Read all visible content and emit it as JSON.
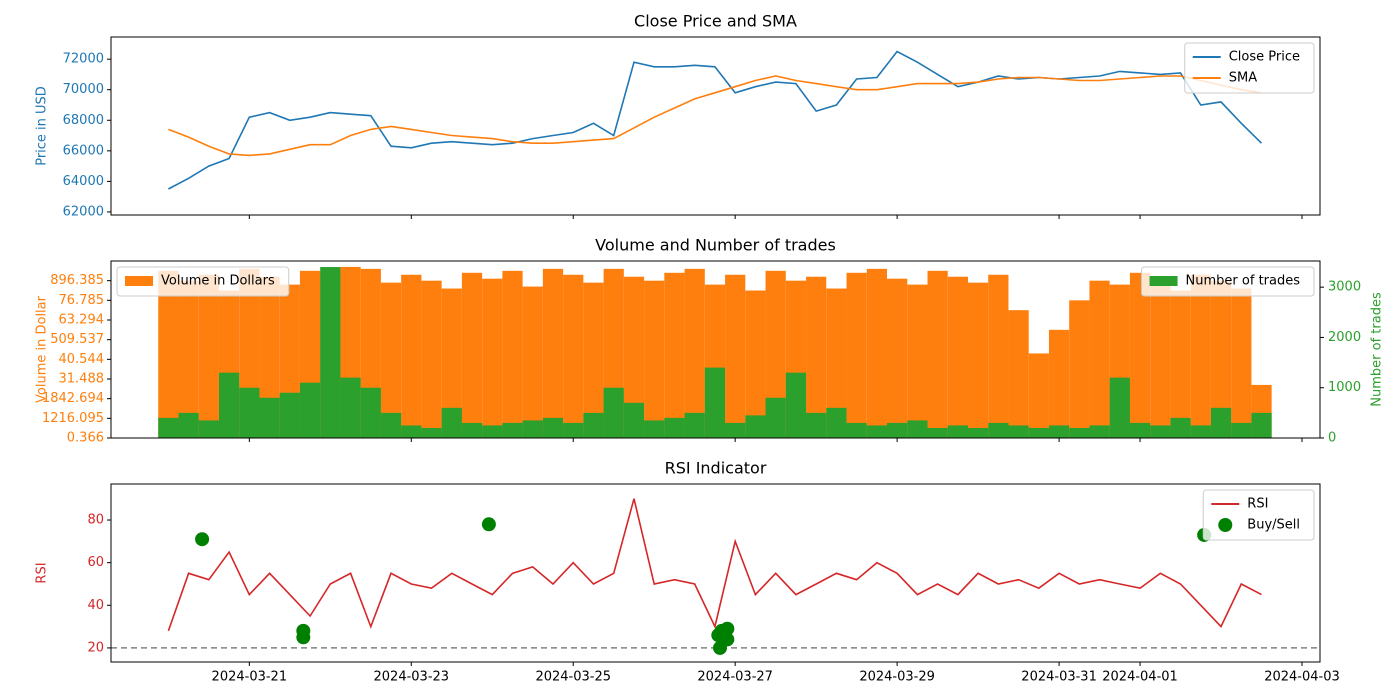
{
  "chart_data": [
    {
      "type": "line",
      "title": "Close Price and SMA",
      "ylabel": "Price in USD",
      "x": [
        "2024-03-20T00:00",
        "2024-03-20T06:00",
        "2024-03-20T12:00",
        "2024-03-20T18:00",
        "2024-03-21T00:00",
        "2024-03-21T06:00",
        "2024-03-21T12:00",
        "2024-03-21T18:00",
        "2024-03-22T00:00",
        "2024-03-22T06:00",
        "2024-03-22T12:00",
        "2024-03-22T18:00",
        "2024-03-23T00:00",
        "2024-03-23T06:00",
        "2024-03-23T12:00",
        "2024-03-23T18:00",
        "2024-03-24T00:00",
        "2024-03-24T06:00",
        "2024-03-24T12:00",
        "2024-03-24T18:00",
        "2024-03-25T00:00",
        "2024-03-25T06:00",
        "2024-03-25T12:00",
        "2024-03-25T18:00",
        "2024-03-26T00:00",
        "2024-03-26T06:00",
        "2024-03-26T12:00",
        "2024-03-26T18:00",
        "2024-03-27T00:00",
        "2024-03-27T06:00",
        "2024-03-27T12:00",
        "2024-03-27T18:00",
        "2024-03-28T00:00",
        "2024-03-28T06:00",
        "2024-03-28T12:00",
        "2024-03-28T18:00",
        "2024-03-29T00:00",
        "2024-03-29T06:00",
        "2024-03-29T12:00",
        "2024-03-29T18:00",
        "2024-03-30T00:00",
        "2024-03-30T06:00",
        "2024-03-30T12:00",
        "2024-03-30T18:00",
        "2024-03-31T00:00",
        "2024-03-31T06:00",
        "2024-03-31T12:00",
        "2024-03-31T18:00",
        "2024-04-01T00:00",
        "2024-04-01T06:00",
        "2024-04-01T12:00",
        "2024-04-01T18:00",
        "2024-04-02T00:00",
        "2024-04-02T06:00",
        "2024-04-02T12:00"
      ],
      "series": [
        {
          "name": "Close Price",
          "color": "#1f77b4",
          "values": [
            63500,
            64200,
            65000,
            65500,
            68200,
            68500,
            68000,
            68200,
            68500,
            68400,
            68300,
            66300,
            66200,
            66500,
            66600,
            66500,
            66400,
            66500,
            66800,
            67000,
            67200,
            67800,
            67000,
            71800,
            71500,
            71500,
            71600,
            71500,
            69800,
            70200,
            70500,
            70400,
            68600,
            69000,
            70700,
            70800,
            72500,
            71800,
            71000,
            70200,
            70500,
            70900,
            70700,
            70800,
            70700,
            70800,
            70900,
            71200,
            71100,
            71000,
            71100,
            69000,
            69200,
            67800,
            66500
          ]
        },
        {
          "name": "SMA",
          "color": "#ff7f0e",
          "values": [
            67400,
            66900,
            66300,
            65800,
            65700,
            65800,
            66100,
            66400,
            66400,
            67000,
            67400,
            67600,
            67400,
            67200,
            67000,
            66900,
            66800,
            66600,
            66500,
            66500,
            66600,
            66700,
            66800,
            67500,
            68200,
            68800,
            69400,
            69800,
            70200,
            70600,
            70900,
            70600,
            70400,
            70200,
            70000,
            70000,
            70200,
            70400,
            70400,
            70400,
            70500,
            70700,
            70800,
            70800,
            70700,
            70600,
            70600,
            70700,
            70800,
            70900,
            70900,
            70600,
            70300,
            70000,
            69800
          ]
        }
      ],
      "ylim": [
        61800,
        73450
      ],
      "yticks": [
        62000,
        64000,
        66000,
        68000,
        70000,
        72000
      ],
      "xlim": [
        "2024-03-19T07:00",
        "2024-04-03T05:20"
      ],
      "legend_loc": "upper right"
    },
    {
      "type": "bar",
      "title": "Volume and Number of trades",
      "ylabel": "Volume in Dollar",
      "y2label": "Number of trades",
      "x": [
        "2024-03-20T00:00",
        "2024-03-20T06:00",
        "2024-03-20T12:00",
        "2024-03-20T18:00",
        "2024-03-21T00:00",
        "2024-03-21T06:00",
        "2024-03-21T12:00",
        "2024-03-21T18:00",
        "2024-03-22T00:00",
        "2024-03-22T06:00",
        "2024-03-22T12:00",
        "2024-03-22T18:00",
        "2024-03-23T00:00",
        "2024-03-23T06:00",
        "2024-03-23T12:00",
        "2024-03-23T18:00",
        "2024-03-24T00:00",
        "2024-03-24T06:00",
        "2024-03-24T12:00",
        "2024-03-24T18:00",
        "2024-03-25T00:00",
        "2024-03-25T06:00",
        "2024-03-25T12:00",
        "2024-03-25T18:00",
        "2024-03-26T00:00",
        "2024-03-26T06:00",
        "2024-03-26T12:00",
        "2024-03-26T18:00",
        "2024-03-27T00:00",
        "2024-03-27T06:00",
        "2024-03-27T12:00",
        "2024-03-27T18:00",
        "2024-03-28T00:00",
        "2024-03-28T06:00",
        "2024-03-28T12:00",
        "2024-03-28T18:00",
        "2024-03-29T00:00",
        "2024-03-29T06:00",
        "2024-03-29T12:00",
        "2024-03-29T18:00",
        "2024-03-30T00:00",
        "2024-03-30T06:00",
        "2024-03-30T12:00",
        "2024-03-30T18:00",
        "2024-03-31T00:00",
        "2024-03-31T06:00",
        "2024-03-31T12:00",
        "2024-03-31T18:00",
        "2024-04-01T00:00",
        "2024-04-01T06:00",
        "2024-04-01T12:00",
        "2024-04-01T18:00",
        "2024-04-02T00:00",
        "2024-04-02T06:00",
        "2024-04-02T12:00"
      ],
      "series": [
        {
          "name": "Volume in Dollars",
          "color": "#ff7f0e",
          "values": [
            8.5,
            8.0,
            8.3,
            7.5,
            8.6,
            8.2,
            7.8,
            8.5,
            8.4,
            8.7,
            8.6,
            7.9,
            8.3,
            8.0,
            7.6,
            8.4,
            8.1,
            8.5,
            7.7,
            8.6,
            8.3,
            7.9,
            8.6,
            8.2,
            8.0,
            8.4,
            8.6,
            7.8,
            8.3,
            7.5,
            8.5,
            8.0,
            8.2,
            7.6,
            8.4,
            8.6,
            8.1,
            7.8,
            8.5,
            8.2,
            7.9,
            8.3,
            6.5,
            4.3,
            5.5,
            7.0,
            8.0,
            7.8,
            8.4,
            8.0,
            7.5,
            8.3,
            8.0,
            7.6,
            2.7
          ]
        },
        {
          "name": "Number of trades",
          "color": "#2ca02c",
          "axis": "y2",
          "values": [
            400,
            500,
            350,
            1300,
            1000,
            800,
            900,
            1100,
            3400,
            1200,
            1000,
            500,
            250,
            200,
            600,
            300,
            250,
            300,
            350,
            400,
            300,
            500,
            1000,
            700,
            350,
            400,
            500,
            1400,
            300,
            450,
            800,
            1300,
            500,
            600,
            300,
            250,
            300,
            350,
            200,
            250,
            200,
            300,
            250,
            200,
            250,
            200,
            250,
            1200,
            300,
            250,
            400,
            250,
            600,
            300,
            500
          ]
        }
      ],
      "ylim": [
        0,
        9
      ],
      "yticks": [
        {
          "value": 0,
          "label": "0.366"
        },
        {
          "value": 1,
          "label": "1216.095"
        },
        {
          "value": 2,
          "label": "1842.694"
        },
        {
          "value": 3,
          "label": "31.488"
        },
        {
          "value": 4,
          "label": "40.544"
        },
        {
          "value": 5,
          "label": "509.537"
        },
        {
          "value": 6,
          "label": "63.294"
        },
        {
          "value": 7,
          "label": "76.785"
        },
        {
          "value": 8,
          "label": "896.385"
        }
      ],
      "y2lim": [
        0,
        3520
      ],
      "y2ticks": [
        0,
        1000,
        2000,
        3000
      ],
      "xlim": [
        "2024-03-19T07:00",
        "2024-04-03T05:20"
      ],
      "legend_loc": [
        "upper left",
        "upper right"
      ]
    },
    {
      "type": "line",
      "title": "RSI Indicator",
      "ylabel": "RSI",
      "x": [
        "2024-03-20T00:00",
        "2024-03-20T06:00",
        "2024-03-20T12:00",
        "2024-03-20T18:00",
        "2024-03-21T00:00",
        "2024-03-21T06:00",
        "2024-03-21T12:00",
        "2024-03-21T18:00",
        "2024-03-22T00:00",
        "2024-03-22T06:00",
        "2024-03-22T12:00",
        "2024-03-22T18:00",
        "2024-03-23T00:00",
        "2024-03-23T06:00",
        "2024-03-23T12:00",
        "2024-03-23T18:00",
        "2024-03-24T00:00",
        "2024-03-24T06:00",
        "2024-03-24T12:00",
        "2024-03-24T18:00",
        "2024-03-25T00:00",
        "2024-03-25T06:00",
        "2024-03-25T12:00",
        "2024-03-25T18:00",
        "2024-03-26T00:00",
        "2024-03-26T06:00",
        "2024-03-26T12:00",
        "2024-03-26T18:00",
        "2024-03-27T00:00",
        "2024-03-27T06:00",
        "2024-03-27T12:00",
        "2024-03-27T18:00",
        "2024-03-28T00:00",
        "2024-03-28T06:00",
        "2024-03-28T12:00",
        "2024-03-28T18:00",
        "2024-03-29T00:00",
        "2024-03-29T06:00",
        "2024-03-29T12:00",
        "2024-03-29T18:00",
        "2024-03-30T00:00",
        "2024-03-30T06:00",
        "2024-03-30T12:00",
        "2024-03-30T18:00",
        "2024-03-31T00:00",
        "2024-03-31T06:00",
        "2024-03-31T12:00",
        "2024-03-31T18:00",
        "2024-04-01T00:00",
        "2024-04-01T06:00",
        "2024-04-01T12:00",
        "2024-04-01T18:00",
        "2024-04-02T00:00",
        "2024-04-02T06:00",
        "2024-04-02T12:00"
      ],
      "series": [
        {
          "name": "RSI",
          "color": "#d62728",
          "values": [
            28,
            55,
            52,
            65,
            45,
            55,
            45,
            35,
            50,
            55,
            30,
            55,
            50,
            48,
            55,
            50,
            45,
            55,
            58,
            50,
            60,
            50,
            55,
            90,
            50,
            52,
            50,
            30,
            70,
            45,
            55,
            45,
            50,
            55,
            52,
            60,
            55,
            45,
            50,
            45,
            55,
            50,
            52,
            48,
            55,
            50,
            52,
            50,
            48,
            55,
            50,
            40,
            30,
            50,
            45
          ]
        },
        {
          "name": "Buy/Sell",
          "color": "#008000",
          "marker": "circle",
          "x": [
            "2024-03-20T10:00",
            "2024-03-21T16:00",
            "2024-03-21T16:00",
            "2024-03-23T23:00",
            "2024-03-26T19:00",
            "2024-03-26T19:30",
            "2024-03-26T20:00",
            "2024-03-26T21:40",
            "2024-03-26T21:40",
            "2024-04-01T19:00"
          ],
          "values": [
            71,
            28,
            25,
            78,
            26,
            20,
            28,
            29,
            24,
            73
          ]
        }
      ],
      "hline": {
        "value": 20,
        "color": "#808080",
        "style": "dashed"
      },
      "ylim": [
        13.4,
        96.9
      ],
      "yticks": [
        20,
        40,
        60,
        80
      ],
      "xlim": [
        "2024-03-19T07:00",
        "2024-04-03T05:20"
      ],
      "xticks": [
        "2024-03-21",
        "2024-03-23",
        "2024-03-25",
        "2024-03-27",
        "2024-03-29",
        "2024-03-31",
        "2024-04-01",
        "2024-04-03"
      ],
      "legend_loc": "upper right"
    }
  ]
}
